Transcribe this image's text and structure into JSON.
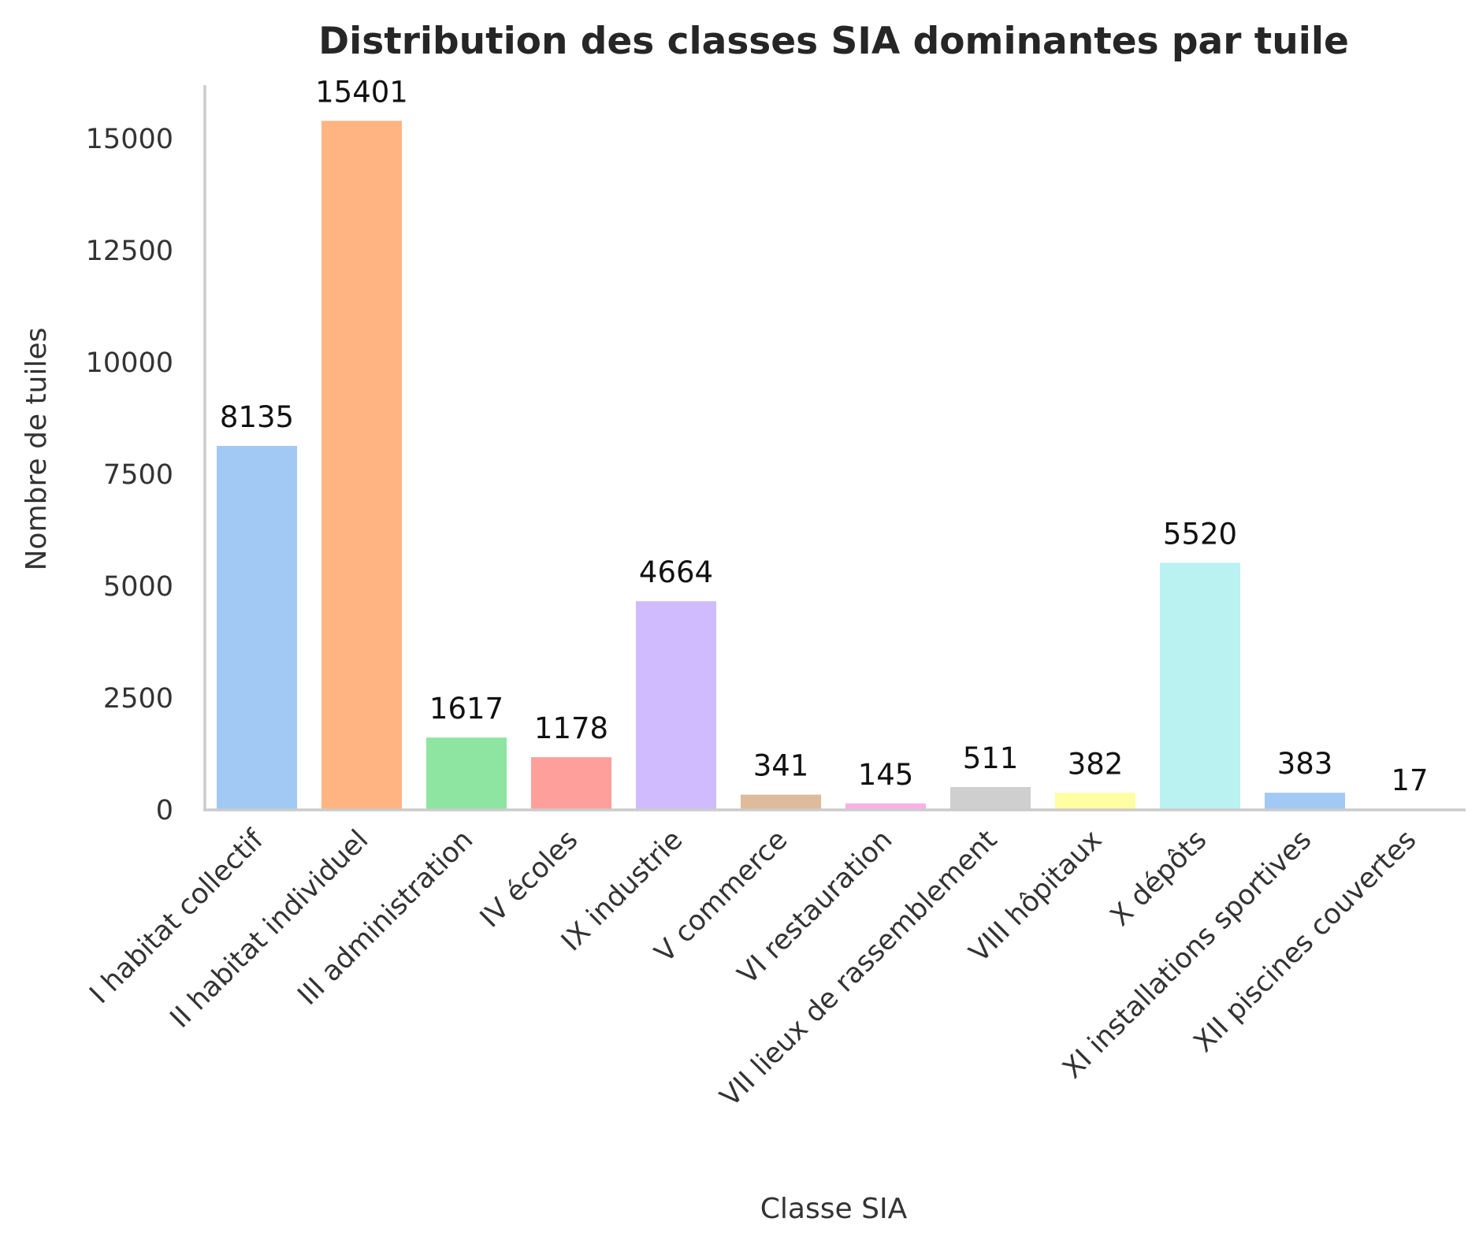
{
  "chart_data": {
    "type": "bar",
    "title": "Distribution des classes SIA dominantes par tuile",
    "xlabel": "Classe SIA",
    "ylabel": "Nombre de tuiles",
    "ylim": [
      0,
      16200
    ],
    "yticks": [
      0,
      2500,
      5000,
      7500,
      10000,
      12500,
      15000
    ],
    "ytick_labels": [
      "0",
      "2500",
      "5000",
      "7500",
      "10000",
      "12500",
      "15000"
    ],
    "grid": false,
    "categories": [
      "I habitat collectif",
      "II habitat individuel",
      "III administration",
      "IV écoles",
      "IX industrie",
      "V commerce",
      "VI restauration",
      "VII lieux de rassemblement",
      "VIII hôpitaux",
      "X dépôts",
      "XI installations sportives",
      "XII piscines couvertes"
    ],
    "values": [
      8135,
      15401,
      1617,
      1178,
      4664,
      341,
      145,
      511,
      382,
      5520,
      383,
      17
    ],
    "data_labels": [
      "8135",
      "15401",
      "1617",
      "1178",
      "4664",
      "341",
      "145",
      "511",
      "382",
      "5520",
      "383",
      "17"
    ],
    "colors": [
      "#a1c9f4",
      "#ffb482",
      "#8de5a1",
      "#ff9f9b",
      "#d0bbff",
      "#debb9b",
      "#fab0e4",
      "#cfcfcf",
      "#fffea3",
      "#b9f2f0",
      "#a1c9f4",
      "#ffb482"
    ]
  }
}
